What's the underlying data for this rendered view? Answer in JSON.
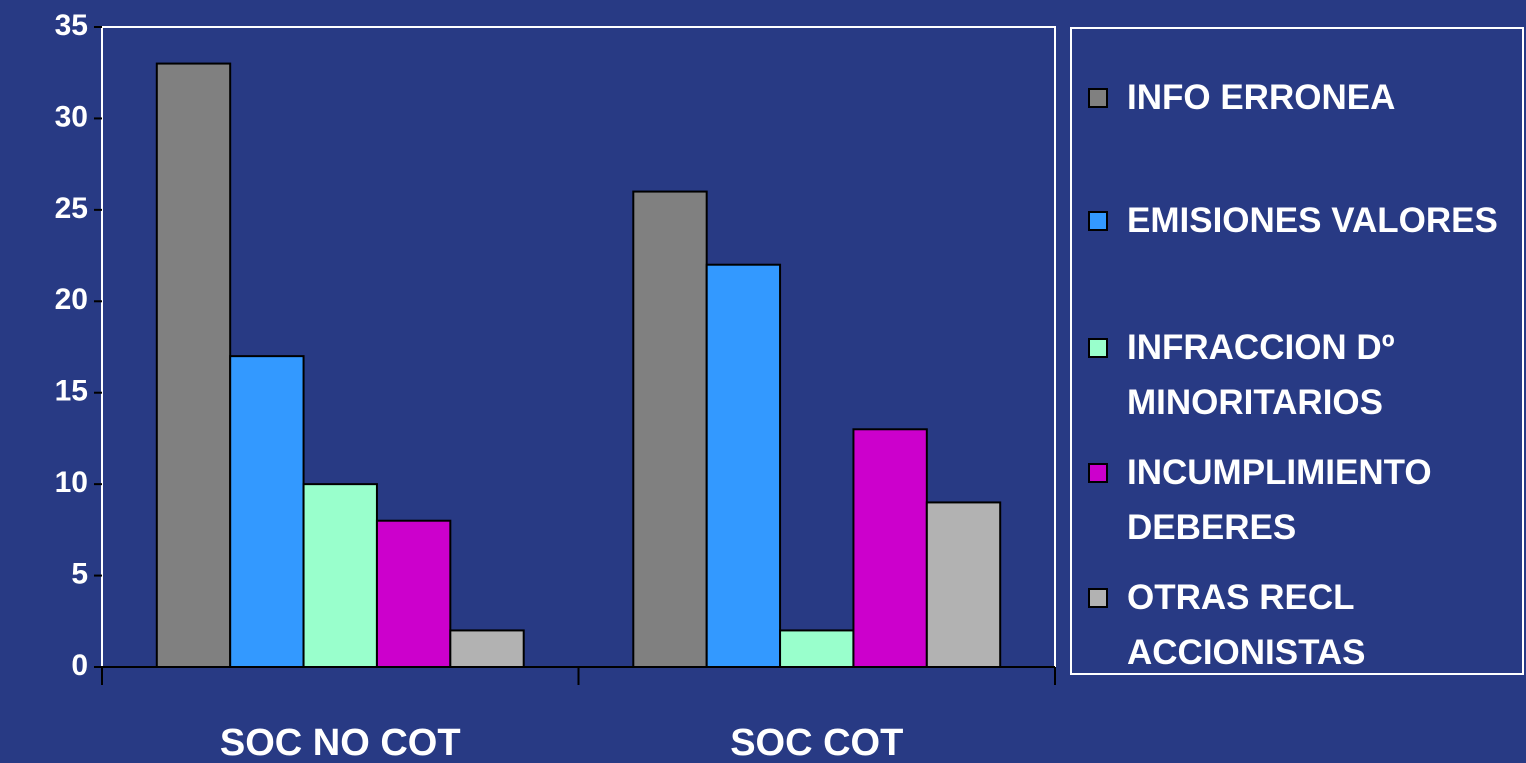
{
  "chart_data": {
    "type": "bar",
    "categories": [
      "SOC NO COT",
      "SOC COT"
    ],
    "series": [
      {
        "name": "INFO ERRONEA",
        "color": "#808080",
        "values": [
          33,
          26
        ]
      },
      {
        "name": "EMISIONES VALORES",
        "color": "#3399ff",
        "values": [
          17,
          22
        ]
      },
      {
        "name": "INFRACCION Dº MINORITARIOS",
        "color": "#99ffcc",
        "values": [
          10,
          2
        ]
      },
      {
        "name": "INCUMPLIMIENTO DEBERES",
        "color": "#cc00cc",
        "values": [
          8,
          13
        ]
      },
      {
        "name": "OTRAS RECL ACCIONISTAS",
        "color": "#b2b2b2",
        "values": [
          2,
          9
        ]
      }
    ],
    "ylim": [
      0,
      35
    ],
    "yticks": [
      0,
      5,
      10,
      15,
      20,
      25,
      30,
      35
    ],
    "grid": false,
    "legend": "right"
  }
}
